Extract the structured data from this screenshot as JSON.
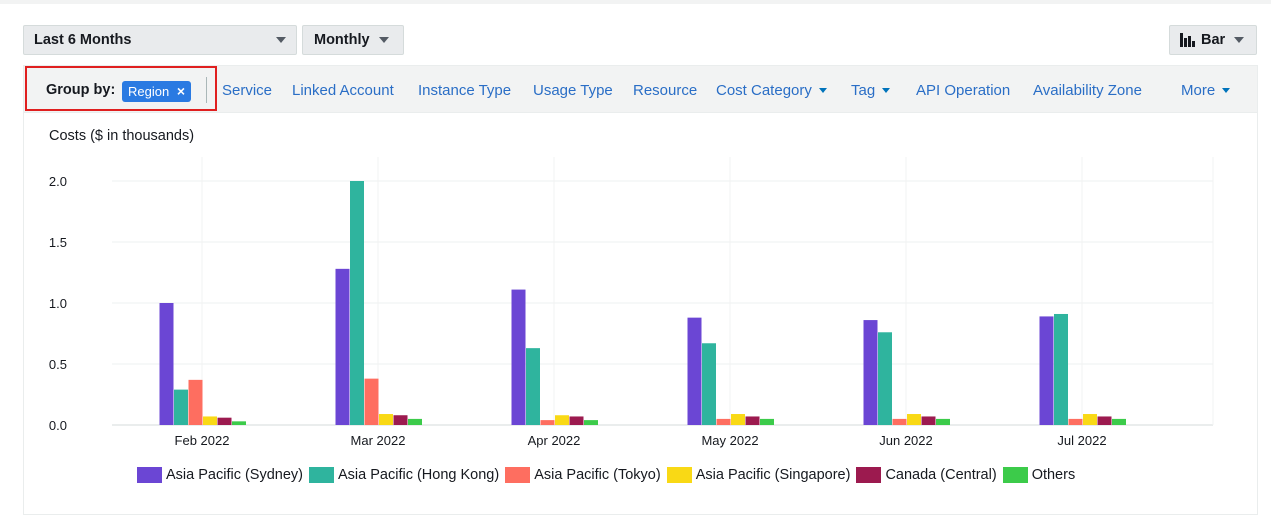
{
  "toolbar": {
    "range_label": "Last 6 Months",
    "interval_label": "Monthly",
    "chart_type_label": "Bar"
  },
  "group_by": {
    "label": "Group by:",
    "chip_label": "Region",
    "chip_close": "×",
    "links": [
      {
        "label": "Service",
        "dropdown": false
      },
      {
        "label": "Linked Account",
        "dropdown": false
      },
      {
        "label": "Instance Type",
        "dropdown": false
      },
      {
        "label": "Usage Type",
        "dropdown": false
      },
      {
        "label": "Resource",
        "dropdown": false
      },
      {
        "label": "Cost Category",
        "dropdown": true
      },
      {
        "label": "Tag",
        "dropdown": true
      },
      {
        "label": "API Operation",
        "dropdown": false
      },
      {
        "label": "Availability Zone",
        "dropdown": false
      }
    ],
    "more_label": "More"
  },
  "colors": {
    "accent_link": "#2a6ec6",
    "chip": "#2a7ae2",
    "highlight_box": "#e01f1f"
  },
  "chart_data": {
    "type": "bar",
    "ylabel": "Costs ($ in thousands)",
    "ylim": [
      0,
      2.0
    ],
    "yticks": [
      "0.0",
      "0.5",
      "1.0",
      "1.5",
      "2.0"
    ],
    "grid": true,
    "legend_position": "bottom",
    "categories": [
      "Feb 2022",
      "Mar 2022",
      "Apr 2022",
      "May 2022",
      "Jun 2022",
      "Jul 2022"
    ],
    "series": [
      {
        "name": "Asia Pacific (Sydney)",
        "color": "#6b46d4",
        "values": [
          1.0,
          1.28,
          1.11,
          0.88,
          0.86,
          0.89
        ]
      },
      {
        "name": "Asia Pacific (Hong Kong)",
        "color": "#2fb49e",
        "values": [
          0.29,
          2.0,
          0.63,
          0.67,
          0.76,
          0.91
        ]
      },
      {
        "name": "Asia Pacific (Tokyo)",
        "color": "#fe6e60",
        "values": [
          0.37,
          0.38,
          0.04,
          0.05,
          0.05,
          0.05
        ]
      },
      {
        "name": "Asia Pacific (Singapore)",
        "color": "#f9d915",
        "values": [
          0.07,
          0.09,
          0.08,
          0.09,
          0.09,
          0.09
        ]
      },
      {
        "name": "Canada (Central)",
        "color": "#9c1a4f",
        "values": [
          0.06,
          0.08,
          0.07,
          0.07,
          0.07,
          0.07
        ]
      },
      {
        "name": "Others",
        "color": "#3ccb4a",
        "values": [
          0.03,
          0.05,
          0.04,
          0.05,
          0.05,
          0.05
        ]
      }
    ]
  }
}
